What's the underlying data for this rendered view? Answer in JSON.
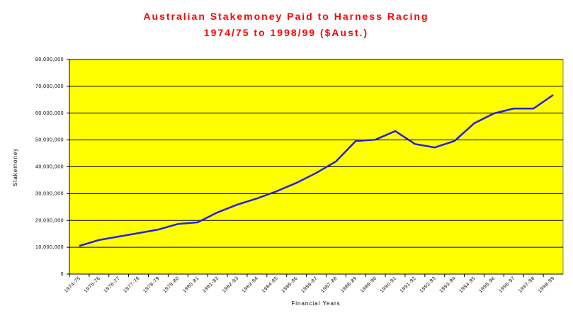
{
  "chart_data": {
    "type": "line",
    "title": "Australian Stakemoney Paid to Harness Racing",
    "subtitle": "1974/75 to 1998/99 ($Aust.)",
    "xlabel": "Financial Years",
    "ylabel": "Stakemoney",
    "categories": [
      "1974-75",
      "1975-76",
      "1976-77",
      "1977-78",
      "1978-79",
      "1979-80",
      "1980-81",
      "1981-82",
      "1982-83",
      "1983-84",
      "1984-85",
      "1985-86",
      "1986-87",
      "1987-88",
      "1988-89",
      "1989-90",
      "1990-91",
      "1991-92",
      "1992-93",
      "1993-94",
      "1994-95",
      "1995-96",
      "1996-97",
      "1997-98",
      "1998-99"
    ],
    "series": [
      {
        "name": "Stakemoney",
        "color": "#2222dd",
        "values": [
          10500000,
          12700000,
          14000000,
          15300000,
          16600000,
          18700000,
          19300000,
          23000000,
          25900000,
          28200000,
          30900000,
          34000000,
          37700000,
          42000000,
          49600000,
          50100000,
          53300000,
          48500000,
          47200000,
          49600000,
          56200000,
          59900000,
          61700000,
          61700000,
          66800000
        ]
      }
    ],
    "ylim": [
      0,
      80000000
    ],
    "yticks": [
      0,
      {
        "value": 10000000,
        "label": "10,000,000"
      },
      {
        "value": 20000000,
        "label": "20,000,000"
      },
      {
        "value": 30000000,
        "label": "30,000,000"
      },
      {
        "value": 40000000,
        "label": "40,000,000"
      },
      {
        "value": 50000000,
        "label": "50,000,000"
      },
      {
        "value": 60000000,
        "label": "60,000,000"
      },
      {
        "value": 70000000,
        "label": "70,000,000"
      },
      {
        "value": 80000000,
        "label": "80,000,000"
      }
    ],
    "grid": true,
    "plot_color": "#ffff00"
  }
}
